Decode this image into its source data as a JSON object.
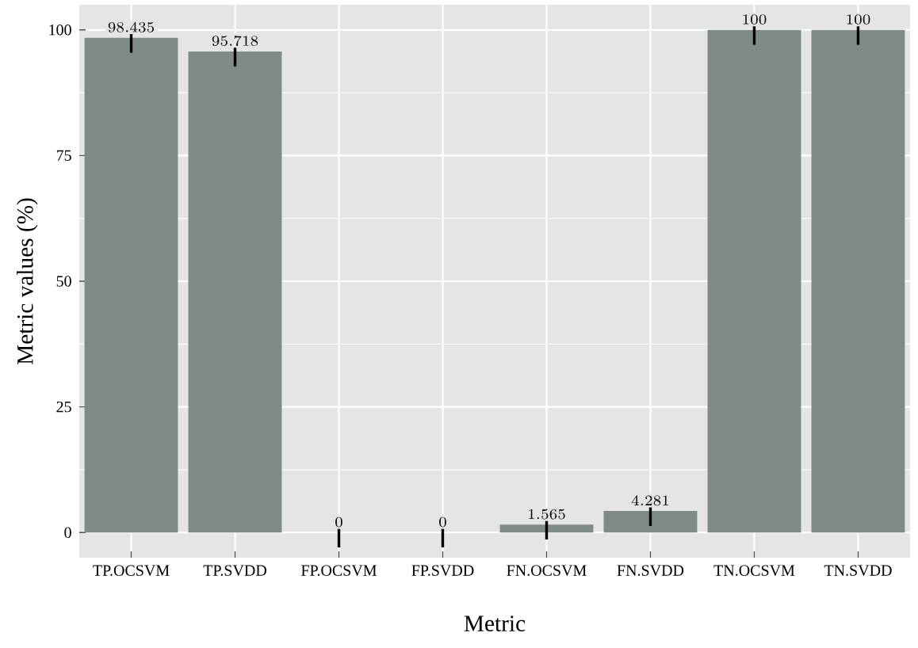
{
  "chart_data": {
    "type": "bar",
    "xlabel": "Metric",
    "ylabel": "Metric values (%)",
    "categories": [
      "TP.OCSVM",
      "TP.SVDD",
      "FP.OCSVM",
      "FP.SVDD",
      "FN.OCSVM",
      "FN.SVDD",
      "TN.OCSVM",
      "TN.SVDD"
    ],
    "values": [
      98.435,
      95.718,
      0,
      0,
      1.565,
      4.281,
      100,
      100
    ],
    "errors": [
      0,
      0,
      0,
      0,
      0,
      0,
      0,
      0
    ],
    "color": "#7f8b88",
    "ylim": [
      -5,
      105
    ],
    "yticks": [
      0,
      25,
      50,
      75,
      100
    ],
    "grid": true,
    "data_labels": true
  }
}
